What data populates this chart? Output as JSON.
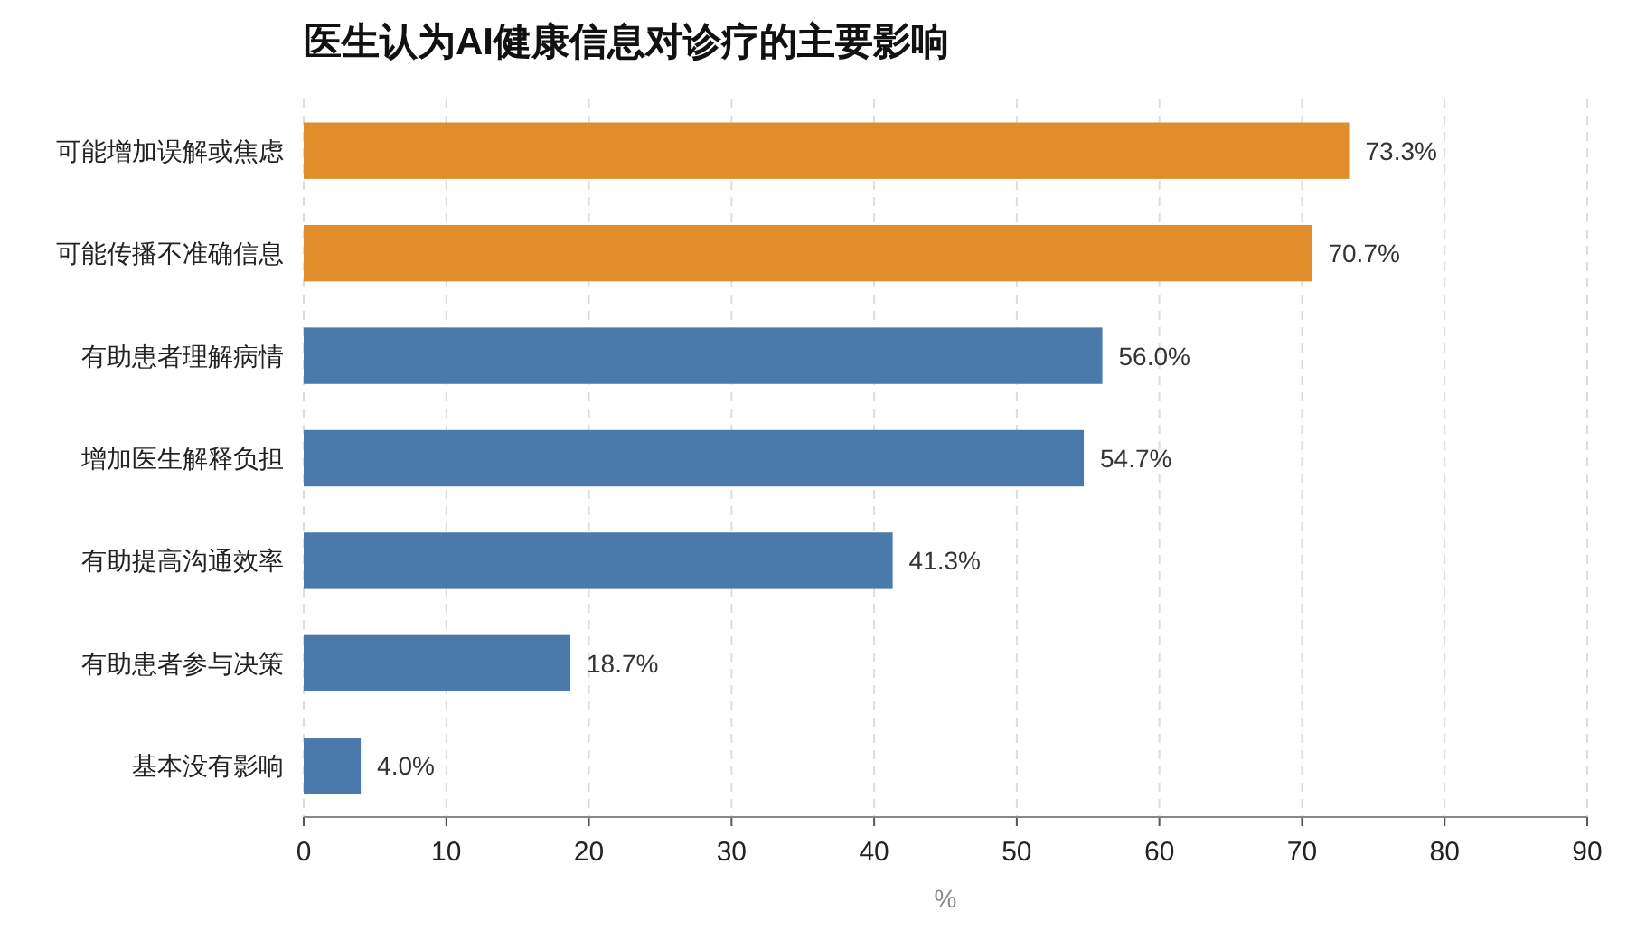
{
  "chart_data": {
    "type": "bar",
    "orientation": "horizontal",
    "title": "医生认为AI健康信息对诊疗的主要影响",
    "xlabel": "%",
    "categories": [
      "可能增加误解或焦虑",
      "可能传播不准确信息",
      "有助患者理解病情",
      "增加医生解释负担",
      "有助提高沟通效率",
      "有助患者参与决策",
      "基本没有影响"
    ],
    "values": [
      73.3,
      70.7,
      56.0,
      54.7,
      41.3,
      18.7,
      4.0
    ],
    "colors": [
      "#e08e2b",
      "#e08e2b",
      "#4a7aab",
      "#4a7aab",
      "#4a7aab",
      "#4a7aab",
      "#4a7aab"
    ],
    "value_labels": [
      "73.3%",
      "70.7%",
      "56.0%",
      "54.7%",
      "41.3%",
      "18.7%",
      "4.0%"
    ],
    "xlim": [
      0,
      90
    ],
    "xticks": [
      0,
      10,
      20,
      30,
      40,
      50,
      60,
      70,
      80,
      90
    ],
    "grid": "x"
  }
}
